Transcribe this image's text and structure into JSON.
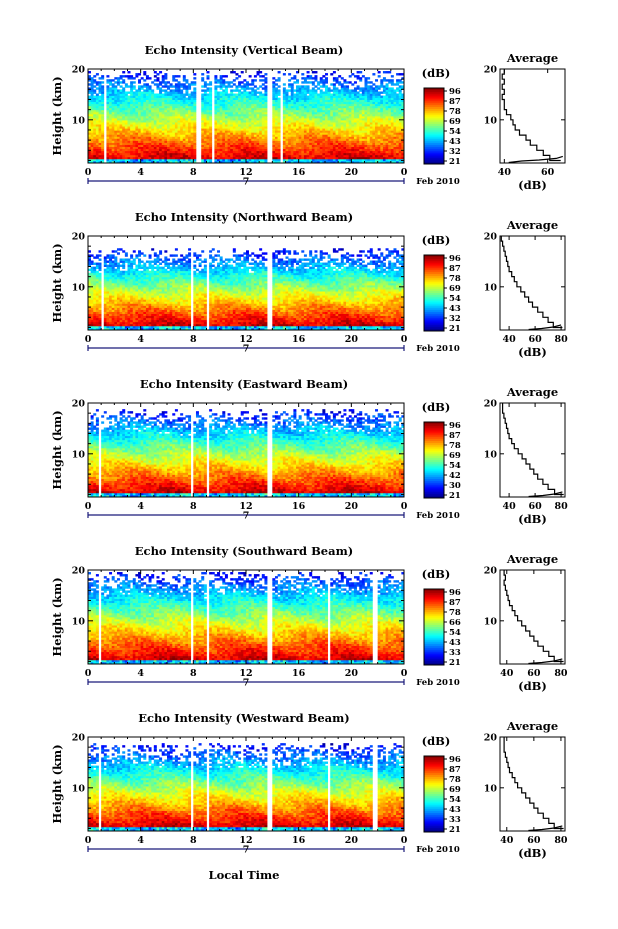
{
  "figure": {
    "local_time_label": "Local Time",
    "date_tag": "Feb 2010",
    "day_label": "7"
  },
  "chart_data": [
    {
      "type": "heatmap",
      "title": "Echo Intensity (Vertical Beam)",
      "ylabel": "Height (km)",
      "xlabel": "Local Time",
      "x_ticks": [
        "0",
        "4",
        "8",
        "12",
        "16",
        "20",
        "0"
      ],
      "y_ticks": [
        "10",
        "20"
      ],
      "xlim": [
        0,
        24
      ],
      "ylim": [
        1.5,
        20
      ],
      "colorbar": {
        "label": "(dB)",
        "ticks": [
          "96",
          "87",
          "78",
          "69",
          "54",
          "43",
          "32",
          "21"
        ]
      },
      "data_gaps_hours": [
        [
          1.2,
          1.4
        ],
        [
          8.3,
          8.55
        ],
        [
          9.4,
          9.6
        ],
        [
          13.7,
          14.0
        ],
        [
          14.55,
          14.8
        ]
      ],
      "upper_signal_limit_km": 19,
      "average_profile": {
        "title": "Average",
        "xlabel": "(dB)",
        "x_ticks": [
          "40",
          "60"
        ],
        "y_ticks": [
          "10",
          "20"
        ],
        "xlim": [
          38,
          68
        ],
        "points": [
          [
            66,
            2
          ],
          [
            61,
            3
          ],
          [
            58,
            4
          ],
          [
            55,
            5
          ],
          [
            52,
            6
          ],
          [
            50,
            7
          ],
          [
            47,
            8
          ],
          [
            45,
            9
          ],
          [
            44,
            10
          ],
          [
            43,
            11
          ],
          [
            41,
            12
          ],
          [
            40,
            13
          ],
          [
            40,
            14
          ],
          [
            39,
            15
          ],
          [
            40,
            16
          ],
          [
            39,
            17
          ],
          [
            40,
            18
          ],
          [
            39,
            19
          ],
          [
            40,
            20
          ]
        ],
        "near_surface_curve": [
          [
            42,
            1.6
          ],
          [
            48,
            1.9
          ],
          [
            56,
            2.1
          ],
          [
            64,
            2.4
          ],
          [
            67,
            2.8
          ]
        ]
      }
    },
    {
      "type": "heatmap",
      "title": "Echo Intensity (Northward Beam)",
      "ylabel": "Height (km)",
      "xlabel": "Local Time",
      "x_ticks": [
        "0",
        "4",
        "8",
        "12",
        "16",
        "20",
        "0"
      ],
      "y_ticks": [
        "10",
        "20"
      ],
      "xlim": [
        0,
        24
      ],
      "ylim": [
        1.5,
        20
      ],
      "colorbar": {
        "label": "(dB)",
        "ticks": [
          "96",
          "87",
          "78",
          "69",
          "54",
          "43",
          "32",
          "21"
        ]
      },
      "data_gaps_hours": [
        [
          0.9,
          1.15
        ],
        [
          7.8,
          8.05
        ],
        [
          9.0,
          9.25
        ],
        [
          13.7,
          14.0
        ]
      ],
      "upper_signal_limit_km": 17,
      "average_profile": {
        "title": "Average",
        "xlabel": "(dB)",
        "x_ticks": [
          "40",
          "60",
          "80"
        ],
        "y_ticks": [
          "10",
          "20"
        ],
        "xlim": [
          33,
          83
        ],
        "points": [
          [
            81,
            2
          ],
          [
            74,
            3
          ],
          [
            70,
            4
          ],
          [
            66,
            5
          ],
          [
            62,
            6
          ],
          [
            58,
            7
          ],
          [
            55,
            8
          ],
          [
            52,
            9
          ],
          [
            49,
            10
          ],
          [
            46,
            11
          ],
          [
            44,
            12
          ],
          [
            42,
            13
          ],
          [
            40,
            14
          ],
          [
            39,
            15
          ],
          [
            38,
            16
          ],
          [
            37,
            17
          ],
          [
            36,
            18
          ],
          [
            35,
            19
          ],
          [
            34,
            20
          ]
        ],
        "near_surface_curve": [
          [
            55,
            1.6
          ],
          [
            65,
            1.8
          ],
          [
            74,
            2.1
          ],
          [
            80,
            2.5
          ]
        ]
      }
    },
    {
      "type": "heatmap",
      "title": "Echo Intensity (Eastward Beam)",
      "ylabel": "Height (km)",
      "xlabel": "Local Time",
      "x_ticks": [
        "0",
        "4",
        "8",
        "12",
        "16",
        "20",
        "0"
      ],
      "y_ticks": [
        "10",
        "20"
      ],
      "xlim": [
        0,
        24
      ],
      "ylim": [
        1.5,
        20
      ],
      "colorbar": {
        "label": "(dB)",
        "ticks": [
          "96",
          "87",
          "78",
          "69",
          "54",
          "42",
          "30",
          "21"
        ]
      },
      "data_gaps_hours": [
        [
          0.8,
          1.05
        ],
        [
          7.8,
          8.05
        ],
        [
          9.0,
          9.25
        ],
        [
          13.7,
          14.0
        ]
      ],
      "upper_signal_limit_km": 18,
      "average_profile": {
        "title": "Average",
        "xlabel": "(dB)",
        "x_ticks": [
          "40",
          "60",
          "80"
        ],
        "y_ticks": [
          "10",
          "20"
        ],
        "xlim": [
          33,
          83
        ],
        "points": [
          [
            82,
            2
          ],
          [
            75,
            3
          ],
          [
            70,
            4
          ],
          [
            66,
            5
          ],
          [
            62,
            6
          ],
          [
            59,
            7
          ],
          [
            56,
            8
          ],
          [
            53,
            9
          ],
          [
            50,
            10
          ],
          [
            47,
            11
          ],
          [
            44,
            12
          ],
          [
            42,
            13
          ],
          [
            40,
            14
          ],
          [
            39,
            15
          ],
          [
            38,
            16
          ],
          [
            37,
            17
          ],
          [
            36,
            18
          ],
          [
            35,
            19
          ],
          [
            35,
            20
          ]
        ],
        "near_surface_curve": [
          [
            55,
            1.6
          ],
          [
            66,
            1.8
          ],
          [
            75,
            2.1
          ],
          [
            81,
            2.5
          ]
        ]
      }
    },
    {
      "type": "heatmap",
      "title": "Echo Intensity (Southward Beam)",
      "ylabel": "Height (km)",
      "xlabel": "Local Time",
      "x_ticks": [
        "0",
        "4",
        "8",
        "12",
        "16",
        "20",
        "0"
      ],
      "y_ticks": [
        "10",
        "20"
      ],
      "xlim": [
        0,
        24
      ],
      "ylim": [
        1.5,
        20
      ],
      "colorbar": {
        "label": "(dB)",
        "ticks": [
          "96",
          "87",
          "78",
          "66",
          "54",
          "43",
          "33",
          "21"
        ]
      },
      "data_gaps_hours": [
        [
          0.8,
          1.05
        ],
        [
          7.8,
          8.05
        ],
        [
          9.0,
          9.25
        ],
        [
          13.7,
          14.0
        ],
        [
          18.2,
          18.45
        ],
        [
          21.7,
          21.95
        ]
      ],
      "upper_signal_limit_km": 19,
      "average_profile": {
        "title": "Average",
        "xlabel": "(dB)",
        "x_ticks": [
          "40",
          "60",
          "80"
        ],
        "y_ticks": [
          "10",
          "20"
        ],
        "xlim": [
          35,
          83
        ],
        "points": [
          [
            82,
            2
          ],
          [
            75,
            3
          ],
          [
            71,
            4
          ],
          [
            67,
            5
          ],
          [
            63,
            6
          ],
          [
            60,
            7
          ],
          [
            57,
            8
          ],
          [
            54,
            9
          ],
          [
            51,
            10
          ],
          [
            48,
            11
          ],
          [
            46,
            12
          ],
          [
            44,
            13
          ],
          [
            42,
            14
          ],
          [
            41,
            15
          ],
          [
            40,
            16
          ],
          [
            39,
            17
          ],
          [
            38,
            18
          ],
          [
            39,
            19
          ],
          [
            38,
            20
          ]
        ],
        "near_surface_curve": [
          [
            56,
            1.6
          ],
          [
            66,
            1.8
          ],
          [
            75,
            2.1
          ],
          [
            81,
            2.5
          ]
        ]
      }
    },
    {
      "type": "heatmap",
      "title": "Echo Intensity (Westward Beam)",
      "ylabel": "Height (km)",
      "xlabel": "Local Time",
      "x_ticks": [
        "0",
        "4",
        "8",
        "12",
        "16",
        "20",
        "0"
      ],
      "y_ticks": [
        "10",
        "20"
      ],
      "xlim": [
        0,
        24
      ],
      "ylim": [
        1.5,
        20
      ],
      "colorbar": {
        "label": "(dB)",
        "ticks": [
          "96",
          "87",
          "78",
          "69",
          "54",
          "43",
          "33",
          "21"
        ]
      },
      "data_gaps_hours": [
        [
          0.8,
          1.05
        ],
        [
          7.8,
          8.05
        ],
        [
          9.0,
          9.25
        ],
        [
          13.7,
          14.0
        ],
        [
          18.2,
          18.45
        ],
        [
          21.7,
          21.95
        ]
      ],
      "upper_signal_limit_km": 18,
      "average_profile": {
        "title": "Average",
        "xlabel": "(dB)",
        "x_ticks": [
          "40",
          "60",
          "80"
        ],
        "y_ticks": [
          "10",
          "20"
        ],
        "xlim": [
          35,
          83
        ],
        "points": [
          [
            82,
            2
          ],
          [
            75,
            3
          ],
          [
            71,
            4
          ],
          [
            67,
            5
          ],
          [
            63,
            6
          ],
          [
            60,
            7
          ],
          [
            57,
            8
          ],
          [
            54,
            9
          ],
          [
            51,
            10
          ],
          [
            48,
            11
          ],
          [
            46,
            12
          ],
          [
            44,
            13
          ],
          [
            42,
            14
          ],
          [
            41,
            15
          ],
          [
            40,
            16
          ],
          [
            39,
            17
          ],
          [
            38,
            18
          ],
          [
            38,
            19
          ],
          [
            38,
            20
          ]
        ],
        "near_surface_curve": [
          [
            56,
            1.6
          ],
          [
            66,
            1.8
          ],
          [
            75,
            2.1
          ],
          [
            81,
            2.5
          ]
        ]
      }
    }
  ]
}
